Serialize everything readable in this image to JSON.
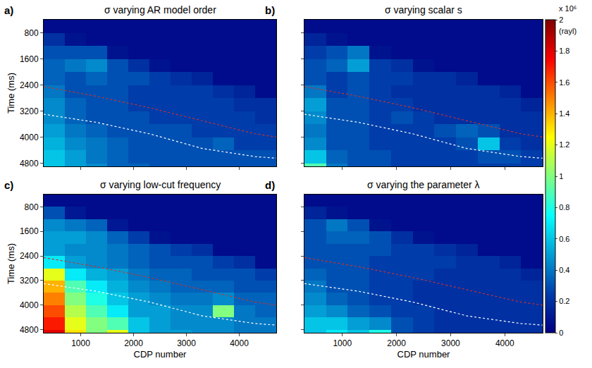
{
  "chart_data": [
    {
      "type": "heatmap",
      "label": "a)",
      "title": "σ varying AR model order",
      "y_label": "Time (ms)",
      "tick_labels": "y",
      "xlim": [
        300,
        4700
      ],
      "ylim": [
        4900,
        400
      ],
      "xticks": [
        1000,
        2000,
        3000,
        4000
      ],
      "yticks": [
        800,
        1600,
        2400,
        3200,
        4000,
        4800
      ],
      "x": [
        500,
        900,
        1300,
        1700,
        2100,
        2500,
        2900,
        3300,
        3700,
        4100,
        4500
      ],
      "y": [
        600,
        1000,
        1400,
        1800,
        2200,
        2600,
        3000,
        3400,
        3800,
        4200,
        4600,
        5000
      ],
      "z": [
        [
          0.05,
          0.05,
          0.05,
          0.05,
          0.05,
          0.05,
          0.05,
          0.05,
          0.05,
          0.05,
          0.05
        ],
        [
          0.2,
          0.08,
          0.05,
          0.05,
          0.05,
          0.05,
          0.05,
          0.05,
          0.05,
          0.05,
          0.05
        ],
        [
          0.3,
          0.3,
          0.3,
          0.08,
          0.05,
          0.05,
          0.05,
          0.05,
          0.05,
          0.05,
          0.05
        ],
        [
          0.35,
          0.4,
          0.45,
          0.3,
          0.2,
          0.08,
          0.05,
          0.05,
          0.05,
          0.05,
          0.05
        ],
        [
          0.35,
          0.3,
          0.35,
          0.3,
          0.3,
          0.25,
          0.2,
          0.15,
          0.05,
          0.05,
          0.05
        ],
        [
          0.4,
          0.3,
          0.3,
          0.3,
          0.25,
          0.25,
          0.25,
          0.25,
          0.2,
          0.15,
          0.05
        ],
        [
          0.45,
          0.35,
          0.3,
          0.3,
          0.25,
          0.25,
          0.25,
          0.25,
          0.25,
          0.2,
          0.2
        ],
        [
          0.45,
          0.35,
          0.3,
          0.3,
          0.3,
          0.25,
          0.25,
          0.25,
          0.25,
          0.25,
          0.2
        ],
        [
          0.5,
          0.4,
          0.35,
          0.3,
          0.3,
          0.3,
          0.3,
          0.25,
          0.25,
          0.25,
          0.25
        ],
        [
          0.55,
          0.45,
          0.4,
          0.35,
          0.3,
          0.3,
          0.3,
          0.3,
          0.35,
          0.25,
          0.25
        ],
        [
          0.6,
          0.5,
          0.4,
          0.35,
          0.3,
          0.3,
          0.3,
          0.3,
          0.3,
          0.3,
          0.3
        ],
        [
          0.6,
          0.5,
          0.45,
          0.35,
          0.35,
          0.3,
          0.3,
          0.3,
          0.3,
          0.3,
          0.3
        ]
      ],
      "series": [
        {
          "type": "line",
          "color": "#c83232",
          "line_style": "dotted",
          "x": [
            300,
            1300,
            2300,
            3300,
            4300,
            4700
          ],
          "values": [
            2450,
            2750,
            3100,
            3500,
            3900,
            4000
          ]
        },
        {
          "type": "line",
          "color": "#ffffff",
          "line_style": "dotted",
          "x": [
            300,
            1300,
            2300,
            3300,
            4300,
            4700
          ],
          "values": [
            3300,
            3550,
            3900,
            4350,
            4600,
            4650
          ]
        }
      ]
    },
    {
      "type": "heatmap",
      "label": "b)",
      "title": "σ varying scalar s",
      "tick_labels": false,
      "xlim": [
        300,
        4700
      ],
      "ylim": [
        4900,
        400
      ],
      "xticks": [
        1000,
        2000,
        3000,
        4000
      ],
      "yticks": [
        800,
        1600,
        2400,
        3200,
        4000,
        4800
      ],
      "x": [
        500,
        900,
        1300,
        1700,
        2100,
        2500,
        2900,
        3300,
        3700,
        4100,
        4500
      ],
      "y": [
        600,
        1000,
        1400,
        1800,
        2200,
        2600,
        3000,
        3400,
        3800,
        4200,
        4600,
        5000
      ],
      "z": [
        [
          0.05,
          0.05,
          0.05,
          0.05,
          0.05,
          0.05,
          0.05,
          0.05,
          0.05,
          0.05,
          0.05
        ],
        [
          0.15,
          0.08,
          0.05,
          0.05,
          0.05,
          0.05,
          0.05,
          0.05,
          0.05,
          0.05,
          0.05
        ],
        [
          0.25,
          0.3,
          0.4,
          0.08,
          0.05,
          0.05,
          0.05,
          0.05,
          0.05,
          0.05,
          0.05
        ],
        [
          0.3,
          0.35,
          0.5,
          0.25,
          0.2,
          0.08,
          0.05,
          0.05,
          0.05,
          0.05,
          0.05
        ],
        [
          0.3,
          0.25,
          0.3,
          0.25,
          0.25,
          0.2,
          0.2,
          0.15,
          0.05,
          0.05,
          0.05
        ],
        [
          0.4,
          0.25,
          0.3,
          0.25,
          0.2,
          0.2,
          0.2,
          0.2,
          0.2,
          0.15,
          0.05
        ],
        [
          0.5,
          0.3,
          0.3,
          0.25,
          0.25,
          0.2,
          0.2,
          0.2,
          0.2,
          0.2,
          0.15
        ],
        [
          0.45,
          0.3,
          0.3,
          0.25,
          0.3,
          0.25,
          0.2,
          0.2,
          0.2,
          0.2,
          0.2
        ],
        [
          0.4,
          0.3,
          0.3,
          0.25,
          0.25,
          0.25,
          0.3,
          0.35,
          0.3,
          0.2,
          0.2
        ],
        [
          0.45,
          0.3,
          0.3,
          0.25,
          0.25,
          0.25,
          0.25,
          0.3,
          0.6,
          0.25,
          0.2
        ],
        [
          0.6,
          0.35,
          0.3,
          0.3,
          0.25,
          0.25,
          0.25,
          0.25,
          0.3,
          0.3,
          0.25
        ],
        [
          0.9,
          0.4,
          0.3,
          0.3,
          0.25,
          0.25,
          0.25,
          0.25,
          0.25,
          0.25,
          0.25
        ]
      ],
      "series": [
        {
          "type": "line",
          "color": "#c83232",
          "line_style": "dotted",
          "x": [
            300,
            1300,
            2300,
            3300,
            4300,
            4700
          ],
          "values": [
            2450,
            2750,
            3100,
            3500,
            3900,
            4000
          ]
        },
        {
          "type": "line",
          "color": "#ffffff",
          "line_style": "dotted",
          "x": [
            300,
            1300,
            2300,
            3300,
            4300,
            4700
          ],
          "values": [
            3300,
            3550,
            3900,
            4350,
            4600,
            4650
          ]
        }
      ]
    },
    {
      "type": "heatmap",
      "label": "c)",
      "title": "σ varying low-cut frequency",
      "x_label": "CDP number",
      "y_label": "Time (ms)",
      "tick_labels": true,
      "xlim": [
        300,
        4700
      ],
      "ylim": [
        4900,
        400
      ],
      "xticks": [
        1000,
        2000,
        3000,
        4000
      ],
      "yticks": [
        800,
        1600,
        2400,
        3200,
        4000,
        4800
      ],
      "x": [
        500,
        900,
        1300,
        1700,
        2100,
        2500,
        2900,
        3300,
        3700,
        4100,
        4500
      ],
      "y": [
        600,
        1000,
        1400,
        1800,
        2200,
        2600,
        3000,
        3400,
        3800,
        4200,
        4600,
        5000
      ],
      "z": [
        [
          0.05,
          0.05,
          0.05,
          0.05,
          0.05,
          0.05,
          0.05,
          0.05,
          0.05,
          0.05,
          0.05
        ],
        [
          0.3,
          0.1,
          0.05,
          0.05,
          0.05,
          0.05,
          0.05,
          0.05,
          0.05,
          0.05,
          0.05
        ],
        [
          0.45,
          0.4,
          0.35,
          0.1,
          0.05,
          0.05,
          0.05,
          0.05,
          0.05,
          0.05,
          0.05
        ],
        [
          0.5,
          0.5,
          0.45,
          0.35,
          0.25,
          0.08,
          0.05,
          0.05,
          0.05,
          0.05,
          0.05
        ],
        [
          0.5,
          0.45,
          0.45,
          0.4,
          0.35,
          0.3,
          0.25,
          0.2,
          0.05,
          0.05,
          0.05
        ],
        [
          0.7,
          0.5,
          0.45,
          0.4,
          0.35,
          0.3,
          0.3,
          0.3,
          0.25,
          0.2,
          0.05
        ],
        [
          1.2,
          0.7,
          0.55,
          0.5,
          0.4,
          0.35,
          0.35,
          0.3,
          0.3,
          0.3,
          0.25
        ],
        [
          1.4,
          0.9,
          0.7,
          0.55,
          0.45,
          0.4,
          0.35,
          0.35,
          0.35,
          0.3,
          0.3
        ],
        [
          1.5,
          1.0,
          0.8,
          0.6,
          0.5,
          0.45,
          0.4,
          0.4,
          0.45,
          0.35,
          0.35
        ],
        [
          1.6,
          1.1,
          0.9,
          0.7,
          0.5,
          0.5,
          0.45,
          0.45,
          1.0,
          0.4,
          0.35
        ],
        [
          1.7,
          1.2,
          1.0,
          0.9,
          0.6,
          0.5,
          0.45,
          0.45,
          0.45,
          0.4,
          0.4
        ],
        [
          1.8,
          1.3,
          1.0,
          1.2,
          0.6,
          0.5,
          0.5,
          0.45,
          0.45,
          0.4,
          0.4
        ]
      ],
      "series": [
        {
          "type": "line",
          "color": "#c83232",
          "line_style": "dotted",
          "x": [
            300,
            1300,
            2300,
            3300,
            4300,
            4700
          ],
          "values": [
            2450,
            2750,
            3100,
            3500,
            3900,
            4000
          ]
        },
        {
          "type": "line",
          "color": "#ffffff",
          "line_style": "dotted",
          "x": [
            300,
            1300,
            2300,
            3300,
            4300,
            4700
          ],
          "values": [
            3300,
            3550,
            3900,
            4350,
            4600,
            4650
          ]
        }
      ]
    },
    {
      "type": "heatmap",
      "label": "d)",
      "title": "σ varying the parameter λ",
      "x_label": "CDP number",
      "tick_labels": "x",
      "xlim": [
        300,
        4700
      ],
      "ylim": [
        4900,
        400
      ],
      "xticks": [
        1000,
        2000,
        3000,
        4000
      ],
      "yticks": [
        800,
        1600,
        2400,
        3200,
        4000,
        4800
      ],
      "x": [
        500,
        900,
        1300,
        1700,
        2100,
        2500,
        2900,
        3300,
        3700,
        4100,
        4500
      ],
      "y": [
        600,
        1000,
        1400,
        1800,
        2200,
        2600,
        3000,
        3400,
        3800,
        4200,
        4600,
        5000
      ],
      "z": [
        [
          0.05,
          0.05,
          0.05,
          0.05,
          0.05,
          0.05,
          0.05,
          0.05,
          0.05,
          0.05,
          0.05
        ],
        [
          0.15,
          0.08,
          0.05,
          0.05,
          0.05,
          0.05,
          0.05,
          0.05,
          0.05,
          0.05,
          0.05
        ],
        [
          0.3,
          0.4,
          0.3,
          0.08,
          0.05,
          0.05,
          0.05,
          0.05,
          0.05,
          0.05,
          0.05
        ],
        [
          0.3,
          0.35,
          0.35,
          0.3,
          0.2,
          0.08,
          0.05,
          0.05,
          0.05,
          0.05,
          0.05
        ],
        [
          0.3,
          0.3,
          0.3,
          0.3,
          0.25,
          0.25,
          0.2,
          0.15,
          0.05,
          0.05,
          0.05
        ],
        [
          0.3,
          0.3,
          0.3,
          0.25,
          0.25,
          0.25,
          0.25,
          0.2,
          0.2,
          0.15,
          0.05
        ],
        [
          0.35,
          0.3,
          0.3,
          0.25,
          0.25,
          0.25,
          0.2,
          0.2,
          0.2,
          0.2,
          0.15
        ],
        [
          0.4,
          0.3,
          0.3,
          0.25,
          0.25,
          0.2,
          0.2,
          0.2,
          0.2,
          0.2,
          0.2
        ],
        [
          0.45,
          0.35,
          0.3,
          0.25,
          0.25,
          0.2,
          0.2,
          0.2,
          0.2,
          0.2,
          0.2
        ],
        [
          0.5,
          0.45,
          0.35,
          0.3,
          0.25,
          0.25,
          0.2,
          0.2,
          0.2,
          0.2,
          0.2
        ],
        [
          0.6,
          0.6,
          0.5,
          0.45,
          0.3,
          0.25,
          0.2,
          0.2,
          0.2,
          0.2,
          0.2
        ],
        [
          0.6,
          0.7,
          0.6,
          0.8,
          0.3,
          0.25,
          0.2,
          0.2,
          0.2,
          0.2,
          0.2
        ]
      ],
      "series": [
        {
          "type": "line",
          "color": "#c83232",
          "line_style": "dotted",
          "x": [
            300,
            1300,
            2300,
            3300,
            4300,
            4700
          ],
          "values": [
            2450,
            2750,
            3100,
            3500,
            3900,
            4000
          ]
        },
        {
          "type": "line",
          "color": "#ffffff",
          "line_style": "dotted",
          "x": [
            300,
            1300,
            2300,
            3300,
            4300,
            4700
          ],
          "values": [
            3300,
            3550,
            3900,
            4350,
            4600,
            4650
          ]
        }
      ]
    }
  ],
  "colorbar": {
    "title": [
      "x 10⁶",
      "(rayl)"
    ],
    "zlim": [
      0,
      2
    ],
    "ticks": [
      0,
      0.2,
      0.4,
      0.6,
      0.8,
      1,
      1.2,
      1.4,
      1.6,
      1.8,
      2
    ]
  }
}
